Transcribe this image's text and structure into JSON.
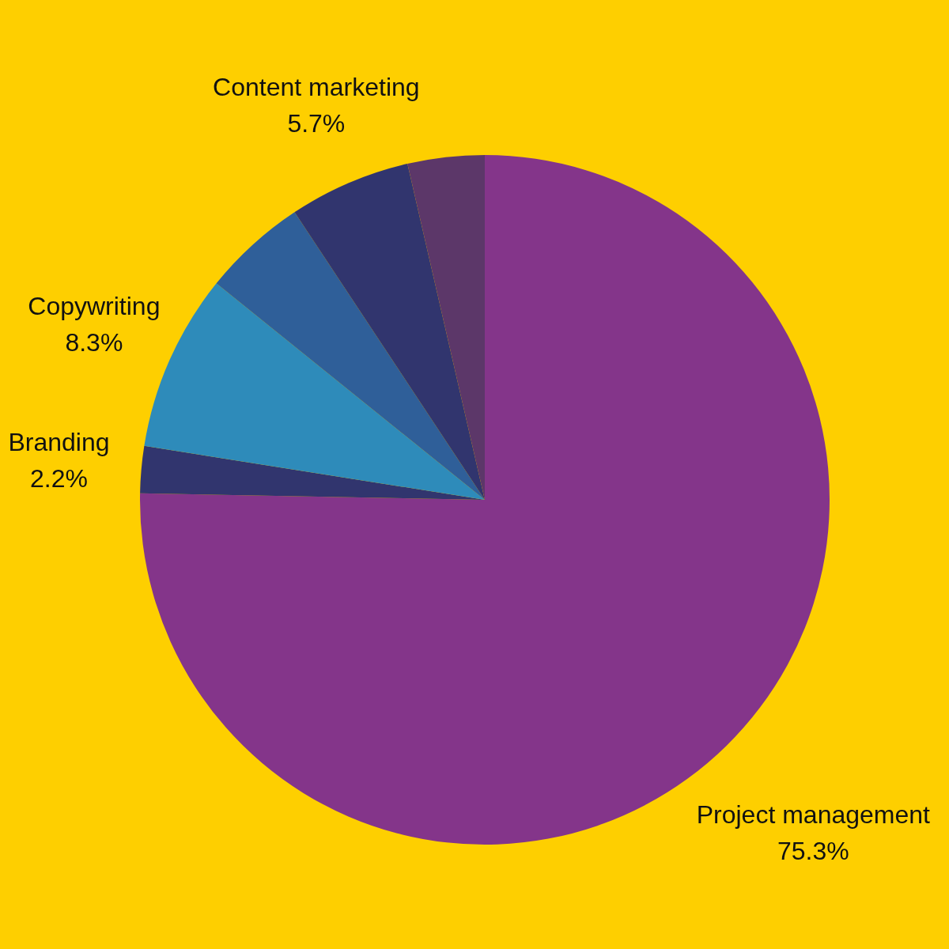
{
  "chart_data": {
    "type": "pie",
    "categories": [
      "Project management",
      "Branding",
      "Copywriting",
      null,
      "Content marketing",
      null
    ],
    "values": [
      75.3,
      2.2,
      8.3,
      4.9,
      5.7,
      3.6
    ],
    "colors": [
      "#84358a",
      "#31356e",
      "#2e8bba",
      "#2f5f99",
      "#31356e",
      "#5c3769"
    ],
    "value_labels": [
      "75.3%",
      "2.2%",
      "8.3%",
      null,
      "5.7%",
      null
    ]
  }
}
